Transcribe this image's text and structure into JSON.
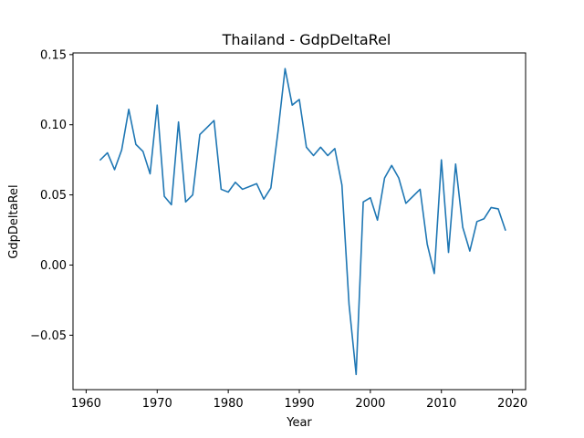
{
  "chart_data": {
    "type": "line",
    "title": "Thailand - GdpDeltaRel",
    "xlabel": "Year",
    "ylabel": "GdpDeltaRel",
    "xlim": [
      1958.15,
      2021.85
    ],
    "ylim": [
      -0.0888,
      0.1512
    ],
    "xticks": [
      1960,
      1970,
      1980,
      1990,
      2000,
      2010,
      2020
    ],
    "xtick_labels": [
      "1960",
      "1970",
      "1980",
      "1990",
      "2000",
      "2010",
      "2020"
    ],
    "yticks": [
      -0.05,
      0.0,
      0.05,
      0.1,
      0.15
    ],
    "ytick_labels": [
      "−0.05",
      "0.00",
      "0.05",
      "0.10",
      "0.15"
    ],
    "grid": false,
    "line_color": "#1f77b4",
    "series": [
      {
        "x": [
          1962,
          1963,
          1964,
          1965,
          1966,
          1967,
          1968,
          1969,
          1970,
          1971,
          1972,
          1973,
          1974,
          1975,
          1976,
          1977,
          1978,
          1979,
          1980,
          1981,
          1982,
          1983,
          1984,
          1985,
          1986,
          1987,
          1988,
          1989,
          1990,
          1991,
          1992,
          1993,
          1994,
          1995,
          1996,
          1997,
          1998,
          1999,
          2000,
          2001,
          2002,
          2003,
          2004,
          2005,
          2006,
          2007,
          2008,
          2009,
          2010,
          2011,
          2012,
          2013,
          2014,
          2015,
          2016,
          2017,
          2018,
          2019
        ],
        "y": [
          0.075,
          0.08,
          0.068,
          0.082,
          0.111,
          0.086,
          0.081,
          0.065,
          0.114,
          0.049,
          0.043,
          0.102,
          0.045,
          0.05,
          0.093,
          0.098,
          0.103,
          0.054,
          0.052,
          0.059,
          0.054,
          0.056,
          0.058,
          0.047,
          0.055,
          0.095,
          0.14,
          0.114,
          0.118,
          0.084,
          0.078,
          0.084,
          0.078,
          0.083,
          0.057,
          -0.028,
          -0.078,
          0.045,
          0.048,
          0.032,
          0.062,
          0.071,
          0.062,
          0.044,
          0.049,
          0.054,
          0.015,
          -0.006,
          0.075,
          0.009,
          0.072,
          0.027,
          0.01,
          0.031,
          0.033,
          0.041,
          0.04,
          0.025
        ]
      }
    ]
  }
}
